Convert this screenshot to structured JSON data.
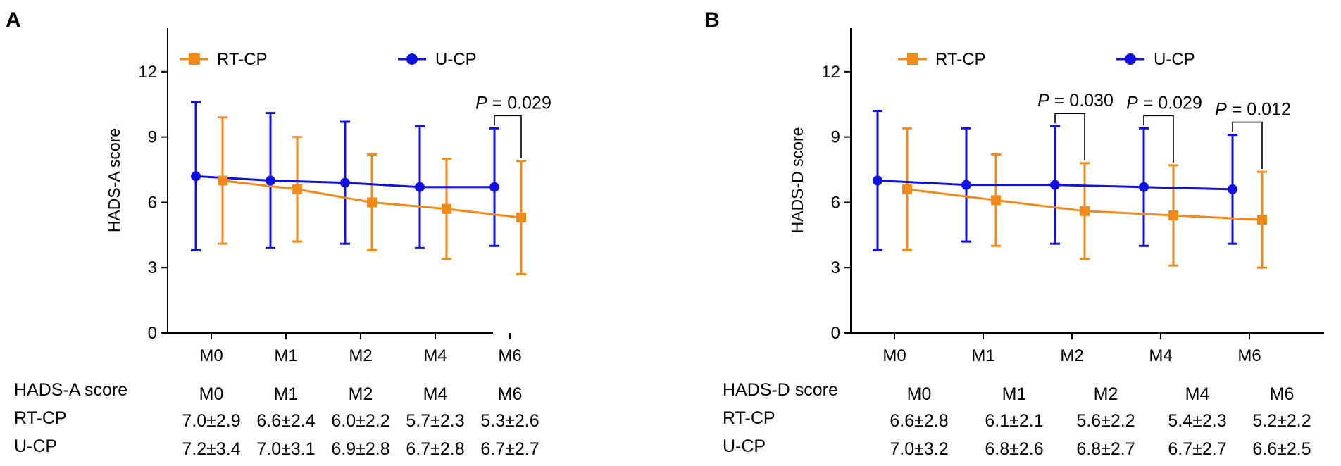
{
  "colors": {
    "rt_cp": "#F28A1A",
    "u_cp": "#1010E0",
    "axis": "#000000"
  },
  "chart_data": [
    {
      "type": "line",
      "panel": "A",
      "ylabel": "HADS-A score",
      "xlabel": "",
      "ylim": [
        0,
        14
      ],
      "yticks": [
        0,
        3,
        6,
        9,
        12
      ],
      "categories": [
        "M0",
        "M1",
        "M2",
        "M4",
        "M6"
      ],
      "legend": [
        "RT-CP",
        "U-CP"
      ],
      "series": [
        {
          "name": "RT-CP",
          "marker": "square",
          "values": [
            7.0,
            6.6,
            6.0,
            5.7,
            5.3
          ],
          "sd": [
            2.9,
            2.4,
            2.2,
            2.3,
            2.6
          ]
        },
        {
          "name": "U-CP",
          "marker": "circle",
          "values": [
            7.2,
            7.0,
            6.9,
            6.7,
            6.7
          ],
          "sd": [
            3.4,
            3.1,
            2.8,
            2.8,
            2.7
          ]
        }
      ],
      "annotations": [
        {
          "category": "M6",
          "italic": "P",
          "text": " = 0.029"
        }
      ],
      "table": {
        "header": "HADS-A score",
        "columns": [
          "M0",
          "M1",
          "M2",
          "M4",
          "M6"
        ],
        "rows": [
          {
            "label": "RT-CP",
            "cells": [
              "7.0±2.9",
              "6.6±2.4",
              "6.0±2.2",
              "5.7±2.3",
              "5.3±2.6"
            ]
          },
          {
            "label": "U-CP",
            "cells": [
              "7.2±3.4",
              "7.0±3.1",
              "6.9±2.8",
              "6.7±2.8",
              "6.7±2.7"
            ]
          }
        ]
      }
    },
    {
      "type": "line",
      "panel": "B",
      "ylabel": "HADS-D score",
      "xlabel": "",
      "ylim": [
        0,
        14
      ],
      "yticks": [
        0,
        3,
        6,
        9,
        12
      ],
      "categories": [
        "M0",
        "M1",
        "M2",
        "M4",
        "M6"
      ],
      "legend": [
        "RT-CP",
        "U-CP"
      ],
      "series": [
        {
          "name": "RT-CP",
          "marker": "square",
          "values": [
            6.6,
            6.1,
            5.6,
            5.4,
            5.2
          ],
          "sd": [
            2.8,
            2.1,
            2.2,
            2.3,
            2.2
          ]
        },
        {
          "name": "U-CP",
          "marker": "circle",
          "values": [
            7.0,
            6.8,
            6.8,
            6.7,
            6.6
          ],
          "sd": [
            3.2,
            2.6,
            2.7,
            2.7,
            2.5
          ]
        }
      ],
      "annotations": [
        {
          "category": "M2",
          "italic": "P",
          "text": " = 0.030"
        },
        {
          "category": "M4",
          "italic": "P",
          "text": " = 0.029"
        },
        {
          "category": "M6",
          "italic": "P",
          "text": " = 0.012"
        }
      ],
      "table": {
        "header": "HADS-D score",
        "columns": [
          "M0",
          "M1",
          "M2",
          "M4",
          "M6"
        ],
        "rows": [
          {
            "label": "RT-CP",
            "cells": [
              "6.6±2.8",
              "6.1±2.1",
              "5.6±2.2",
              "5.4±2.3",
              "5.2±2.2"
            ]
          },
          {
            "label": "U-CP",
            "cells": [
              "7.0±3.2",
              "6.8±2.6",
              "6.8±2.7",
              "6.7±2.7",
              "6.6±2.5"
            ]
          }
        ]
      }
    }
  ]
}
